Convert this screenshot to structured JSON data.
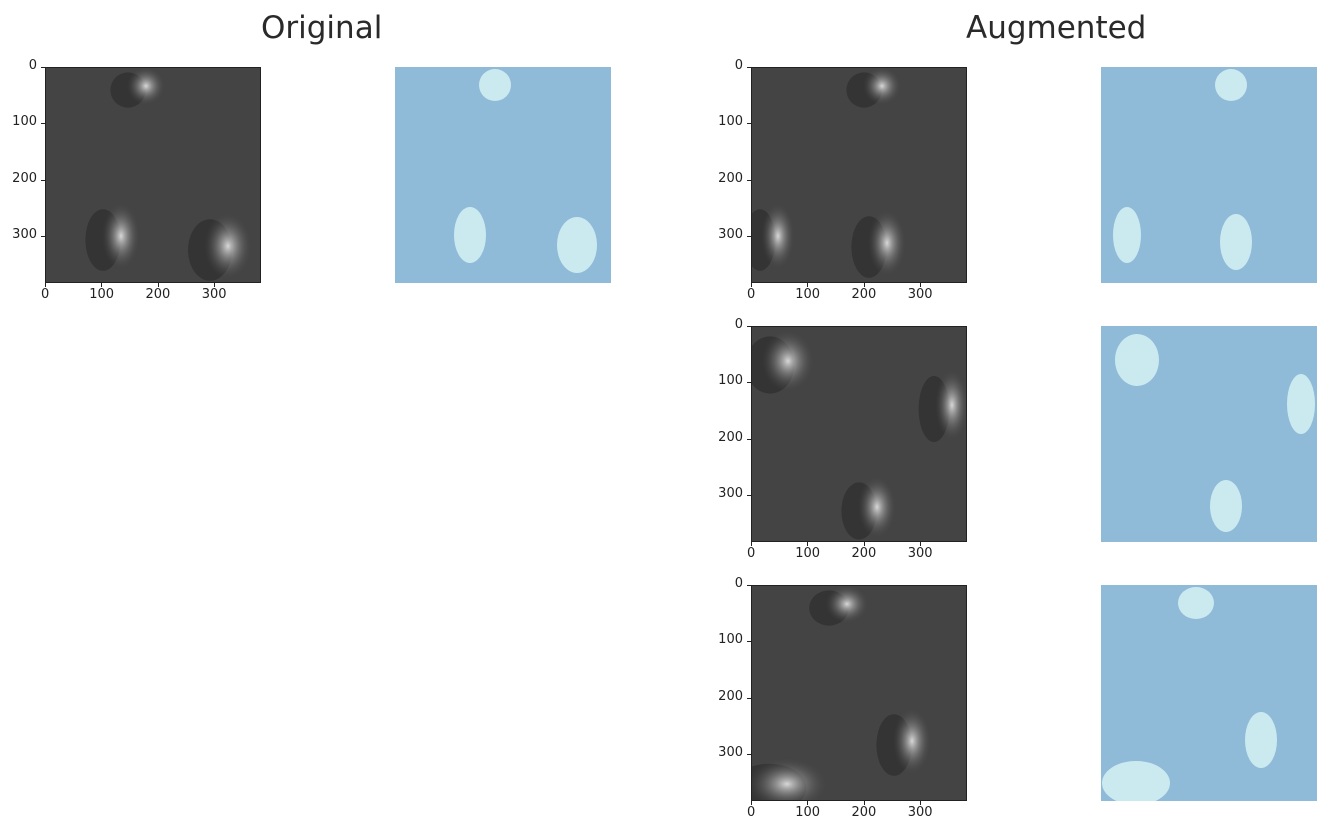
{
  "headings": {
    "original": "Original",
    "augmented": "Augmented"
  },
  "axis_ticks": {
    "y": [
      "0",
      "100",
      "200",
      "300"
    ],
    "x": [
      "0",
      "100",
      "200",
      "300"
    ]
  },
  "colors": {
    "image_bg": "#444444",
    "image_light": "#d8d8d8",
    "mask_bg": "#8fbbd9",
    "mask_fg": "#cbeaf0"
  }
}
